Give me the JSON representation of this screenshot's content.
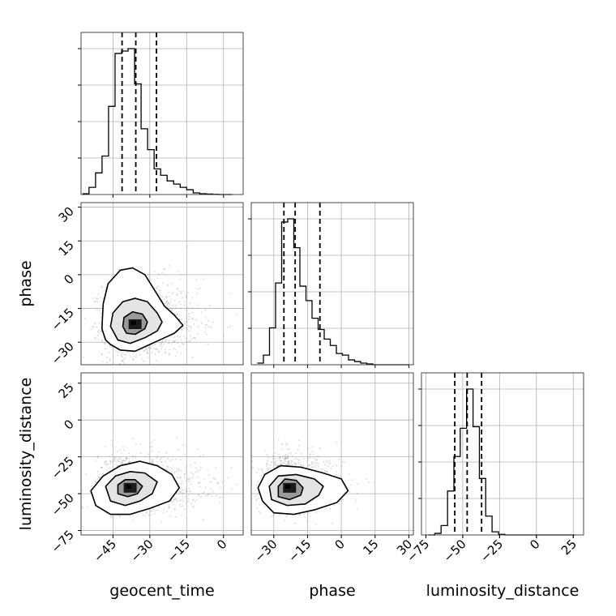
{
  "chart_data": {
    "type": "corner",
    "parameters": [
      "geocent_time",
      "phase",
      "luminosity_distance"
    ],
    "axis_labels": [
      "geocent_time",
      "phase",
      "luminosity_distance"
    ],
    "ranges": {
      "geocent_time": [
        -58,
        8
      ],
      "phase": [
        -40,
        32
      ],
      "luminosity_distance": [
        -78,
        32
      ]
    },
    "ticks": {
      "geocent_time": [
        -45,
        -30,
        -15,
        0
      ],
      "phase": [
        -30,
        -15,
        0,
        15,
        30
      ],
      "luminosity_distance": [
        -75,
        -50,
        -25,
        0,
        25
      ]
    },
    "y_ticks": {
      "phase": [
        -30,
        -15,
        0,
        15,
        30
      ],
      "luminosity_distance": [
        -75,
        -50,
        -25,
        0,
        25
      ]
    },
    "quantiles": {
      "geocent_time": [
        -41.3,
        -35.7,
        -27.3
      ],
      "phase": [
        -25.5,
        -20.5,
        -9.5
      ],
      "luminosity_distance": [
        -55.4,
        -47.0,
        -37.2
      ]
    },
    "histograms": {
      "geocent_time": {
        "bin_edges": [
          -57.4,
          -54.75,
          -52.1,
          -49.45,
          -46.8,
          -44.15,
          -41.5,
          -38.85,
          -36.2,
          -33.55,
          -30.9,
          -28.25,
          -25.6,
          -22.95,
          -20.3,
          -17.65,
          -14.99,
          -12.34,
          -9.69,
          -7.04,
          -4.39,
          -1.74,
          0.91,
          3.56
        ],
        "counts": [
          0.5,
          4.5,
          13.5,
          24.0,
          55.0,
          88.0,
          89.5,
          91.0,
          69.0,
          41.0,
          28.0,
          16.0,
          12.0,
          8.5,
          6.5,
          4.5,
          3.0,
          1.0,
          0.5,
          0.3,
          0.1,
          0,
          0
        ]
      },
      "phase": {
        "bin_edges": [
          -37.3,
          -34.6,
          -31.9,
          -29.2,
          -26.5,
          -23.8,
          -21.1,
          -18.4,
          -15.7,
          -13.0,
          -10.3,
          -7.6,
          -4.9,
          -2.2,
          0.5,
          3.2,
          5.9,
          8.6,
          11.3,
          14.0,
          16.7,
          19.4,
          22.1,
          24.8,
          27.5,
          30.2
        ],
        "counts": [
          1.0,
          6.0,
          23.0,
          51.0,
          89.0,
          91.0,
          73.0,
          49.0,
          40.0,
          29.0,
          22.0,
          16.0,
          12.0,
          7.0,
          6.0,
          3.0,
          2.0,
          1.0,
          0.5,
          0,
          0,
          0,
          0,
          0,
          0
        ]
      },
      "luminosity_distance": {
        "bin_edges": [
          -73.3,
          -69.0,
          -64.7,
          -60.3,
          -56.0,
          -51.7,
          -47.4,
          -43.0,
          -38.7,
          -34.4,
          -30.1,
          -25.7,
          -21.4,
          -17.1,
          -12.8,
          -8.4,
          -4.1,
          0.2,
          4.5,
          8.8,
          13.2,
          17.5,
          21.8,
          26.1
        ],
        "counts": [
          0,
          1.0,
          6.0,
          28.0,
          50.0,
          68.0,
          93.0,
          69.0,
          36.0,
          12.0,
          2.0,
          0.4,
          0,
          0,
          0,
          0,
          0,
          0,
          0,
          0,
          0,
          0,
          0
        ]
      }
    },
    "pairs": [
      {
        "x": "geocent_time",
        "y": "phase",
        "peak": [
          -36,
          -22
        ],
        "spread": [
          6.5,
          7.0
        ],
        "skew": [
          0.45,
          0.2
        ]
      },
      {
        "x": "geocent_time",
        "y": "luminosity_distance",
        "peak": [
          -38,
          -46
        ],
        "spread": [
          6.5,
          7.5
        ],
        "skew": [
          0.55,
          0.25
        ]
      },
      {
        "x": "phase",
        "y": "luminosity_distance",
        "peak": [
          -23,
          -46
        ],
        "spread": [
          5.5,
          7.0
        ],
        "skew": [
          0.5,
          0.25
        ]
      }
    ],
    "contours": [
      {
        "x": "geocent_time",
        "y": "phase",
        "levels": [
          [
            [
              -46,
              -31
            ],
            [
              -42,
              -33.5
            ],
            [
              -36,
              -34
            ],
            [
              -30,
              -31
            ],
            [
              -26,
              -29
            ],
            [
              -20,
              -26
            ],
            [
              -16.5,
              -22.5
            ],
            [
              -20,
              -18
            ],
            [
              -24,
              -14
            ],
            [
              -28,
              -7
            ],
            [
              -32,
              0
            ],
            [
              -37,
              3
            ],
            [
              -42,
              2
            ],
            [
              -47,
              -4
            ],
            [
              -49,
              -13
            ],
            [
              -49.5,
              -24
            ],
            [
              -48,
              -29
            ]
          ],
          [
            [
              -43,
              -29
            ],
            [
              -38,
              -30.5
            ],
            [
              -32,
              -28
            ],
            [
              -27,
              -25
            ],
            [
              -25,
              -21
            ],
            [
              -27,
              -17
            ],
            [
              -31,
              -12
            ],
            [
              -36,
              -10.5
            ],
            [
              -41,
              -12
            ],
            [
              -45,
              -17
            ],
            [
              -46,
              -23
            ]
          ],
          [
            [
              -39.5,
              -26
            ],
            [
              -36,
              -26.5
            ],
            [
              -32,
              -24
            ],
            [
              -31,
              -21
            ],
            [
              -33,
              -17.5
            ],
            [
              -37,
              -16.5
            ],
            [
              -40.5,
              -19
            ],
            [
              -41,
              -23
            ]
          ]
        ]
      },
      {
        "x": "geocent_time",
        "y": "luminosity_distance",
        "levels": [
          [
            [
              -52,
              -58
            ],
            [
              -46,
              -64
            ],
            [
              -38,
              -64
            ],
            [
              -30,
              -60
            ],
            [
              -22,
              -55
            ],
            [
              -18,
              -46
            ],
            [
              -21,
              -37
            ],
            [
              -27,
              -31
            ],
            [
              -34,
              -28
            ],
            [
              -42,
              -31
            ],
            [
              -49,
              -38
            ],
            [
              -54,
              -48
            ]
          ],
          [
            [
              -46,
              -55
            ],
            [
              -40,
              -58
            ],
            [
              -34,
              -55
            ],
            [
              -29,
              -50
            ],
            [
              -27,
              -42
            ],
            [
              -32,
              -36
            ],
            [
              -38,
              -35
            ],
            [
              -44,
              -38
            ],
            [
              -48,
              -45
            ]
          ],
          [
            [
              -43,
              -50
            ],
            [
              -39,
              -52
            ],
            [
              -35,
              -50
            ],
            [
              -33,
              -45
            ],
            [
              -36,
              -40.5
            ],
            [
              -40,
              -40.5
            ],
            [
              -43,
              -44
            ]
          ]
        ]
      },
      {
        "x": "phase",
        "y": "luminosity_distance",
        "levels": [
          [
            [
              -35,
              -55
            ],
            [
              -30,
              -63
            ],
            [
              -21,
              -64
            ],
            [
              -12,
              -61
            ],
            [
              -2,
              -56
            ],
            [
              3,
              -48
            ],
            [
              0,
              -40
            ],
            [
              -8,
              -36
            ],
            [
              -18,
              -32
            ],
            [
              -27,
              -31
            ],
            [
              -34,
              -37
            ],
            [
              -37,
              -46
            ]
          ],
          [
            [
              -31,
              -54
            ],
            [
              -24,
              -58
            ],
            [
              -16,
              -57
            ],
            [
              -10,
              -51
            ],
            [
              -8,
              -45
            ],
            [
              -12,
              -40
            ],
            [
              -20,
              -37
            ],
            [
              -28,
              -38
            ],
            [
              -32,
              -45
            ]
          ],
          [
            [
              -28,
              -52
            ],
            [
              -23,
              -54
            ],
            [
              -18,
              -51
            ],
            [
              -17,
              -46
            ],
            [
              -20,
              -41
            ],
            [
              -25,
              -40
            ],
            [
              -28,
              -45
            ]
          ]
        ]
      }
    ]
  }
}
